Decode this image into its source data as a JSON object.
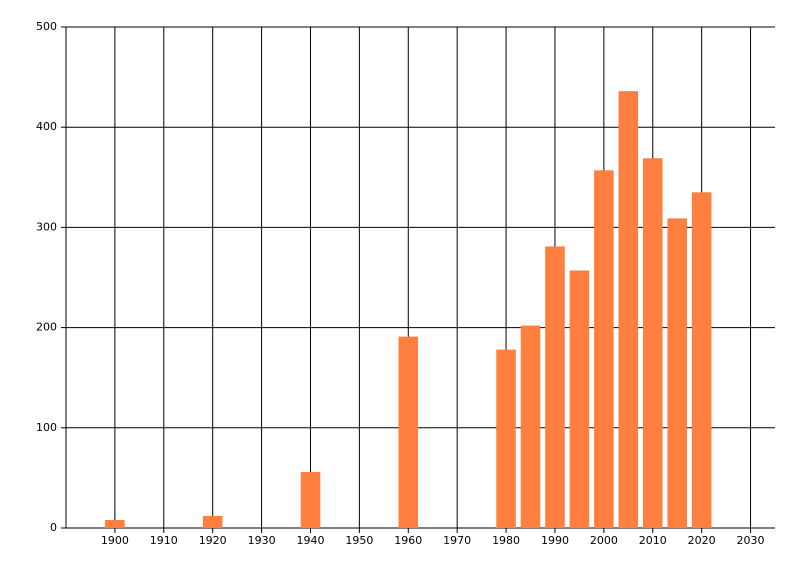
{
  "chart_data": {
    "type": "bar",
    "x": [
      1900,
      1920,
      1940,
      1960,
      1980,
      1985,
      1990,
      1995,
      2000,
      2005,
      2010,
      2015,
      2020
    ],
    "values": [
      8,
      12,
      56,
      191,
      178,
      202,
      281,
      257,
      357,
      436,
      369,
      309,
      335
    ],
    "color": "#ff7f40",
    "xlim": [
      1890,
      2035
    ],
    "xticks": [
      1900,
      1910,
      1920,
      1930,
      1940,
      1950,
      1960,
      1970,
      1980,
      1990,
      2000,
      2010,
      2020,
      2030
    ],
    "ylim": [
      0,
      500
    ],
    "yticks": [
      0,
      100,
      200,
      300,
      400,
      500
    ],
    "grid": true
  }
}
